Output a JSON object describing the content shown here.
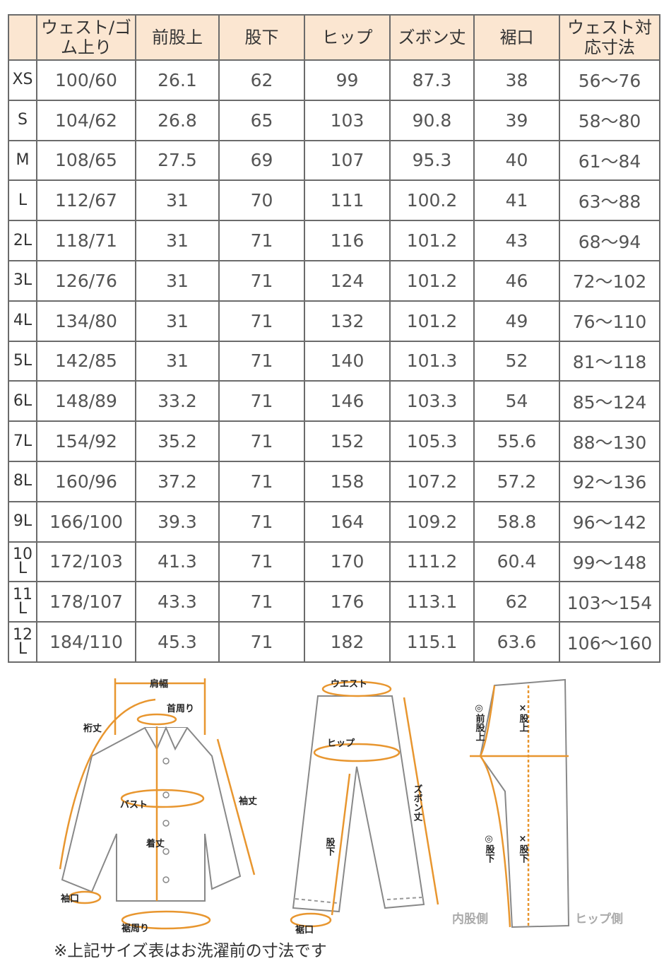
{
  "table": {
    "headers": [
      "",
      "ウェスト/ゴム上り",
      "前股上",
      "股下",
      "ヒップ",
      "ズボン丈",
      "裾口",
      "ウェスト対応寸法"
    ],
    "rows": [
      [
        "XS",
        "100/60",
        "26.1",
        "62",
        "99",
        "87.3",
        "38",
        "56～76"
      ],
      [
        "S",
        "104/62",
        "26.8",
        "65",
        "103",
        "90.8",
        "39",
        "58～80"
      ],
      [
        "M",
        "108/65",
        "27.5",
        "69",
        "107",
        "95.3",
        "40",
        "61～84"
      ],
      [
        "L",
        "112/67",
        "31",
        "70",
        "111",
        "100.2",
        "41",
        "63～88"
      ],
      [
        "2L",
        "118/71",
        "31",
        "71",
        "116",
        "101.2",
        "43",
        "68～94"
      ],
      [
        "3L",
        "126/76",
        "31",
        "71",
        "124",
        "101.2",
        "46",
        "72～102"
      ],
      [
        "4L",
        "134/80",
        "31",
        "71",
        "132",
        "101.2",
        "49",
        "76～110"
      ],
      [
        "5L",
        "142/85",
        "31",
        "71",
        "140",
        "101.3",
        "52",
        "81～118"
      ],
      [
        "6L",
        "148/89",
        "33.2",
        "71",
        "146",
        "103.3",
        "54",
        "85～124"
      ],
      [
        "7L",
        "154/92",
        "35.2",
        "71",
        "152",
        "105.3",
        "55.6",
        "88～130"
      ],
      [
        "8L",
        "160/96",
        "37.2",
        "71",
        "158",
        "107.2",
        "57.2",
        "92～136"
      ],
      [
        "9L",
        "166/100",
        "39.3",
        "71",
        "164",
        "109.2",
        "58.8",
        "96～142"
      ],
      [
        "10L",
        "172/103",
        "41.3",
        "71",
        "170",
        "111.2",
        "60.4",
        "99～148"
      ],
      [
        "11L",
        "178/107",
        "43.3",
        "71",
        "176",
        "113.1",
        "62",
        "103～154"
      ],
      [
        "12L",
        "184/110",
        "45.3",
        "71",
        "182",
        "115.1",
        "63.6",
        "106～160"
      ]
    ]
  },
  "diagram": {
    "shirt": {
      "shoulder": "肩幅",
      "neck": "首周り",
      "yuki": "裄丈",
      "bust": "バスト",
      "sleeve": "袖丈",
      "length": "着丈",
      "cuff": "袖口",
      "hem": "裾周り"
    },
    "pants": {
      "waist": "ウエスト",
      "hip": "ヒップ",
      "inseam": "股下",
      "length": "ズボン丈",
      "hem": "裾口"
    },
    "side": {
      "front_rise": "◎前股上",
      "rise": "×股上",
      "inseam_o": "◎股下",
      "inseam_x": "×股下",
      "inner": "内股側",
      "hip_side": "ヒップ側"
    },
    "accent": "#e8962f"
  },
  "note": "※上記サイズ表はお洗濯前の寸法です"
}
